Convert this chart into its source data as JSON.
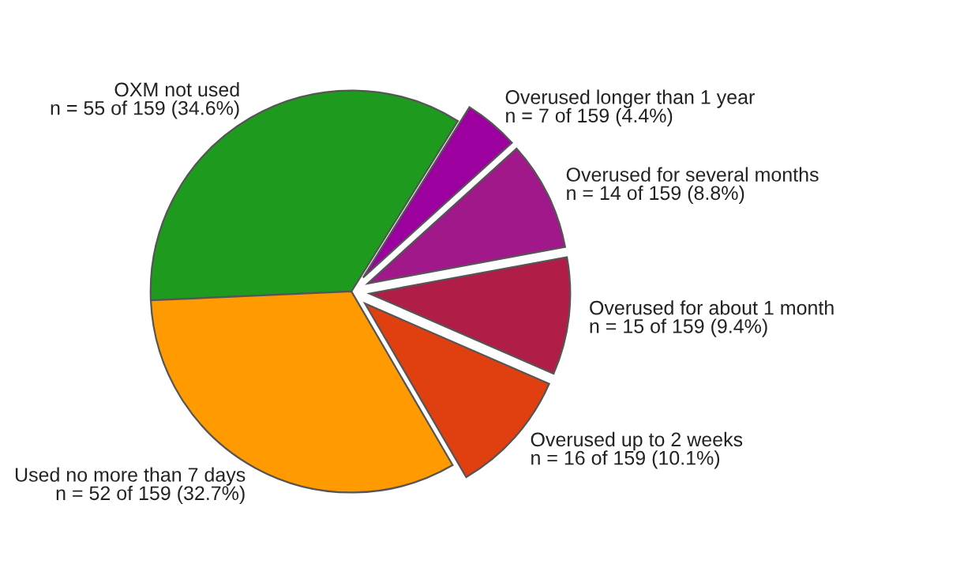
{
  "chart_data": {
    "type": "pie",
    "categories": [
      "OXM not used",
      "Used no more than 7 days",
      "Overused up to 2 weeks",
      "Overused for about 1 month",
      "Overused for several months",
      "Overused longer than 1 year"
    ],
    "values": [
      55,
      52,
      16,
      15,
      14,
      7
    ],
    "value_labels": [
      "n = 55 of 159 (34.6%)",
      "n = 52 of 159 (32.7%)",
      "n = 16 of 159 (10.1%)",
      "n = 15 of 159 (9.4%)",
      "n = 14 of 159 (8.8%)",
      "n = 7 of 159 (4.4%)"
    ],
    "colors": [
      "#1e9a1e",
      "#ff9a00",
      "#e04010",
      "#b01e48",
      "#a0188a",
      "#9c009e"
    ],
    "legend": false
  }
}
